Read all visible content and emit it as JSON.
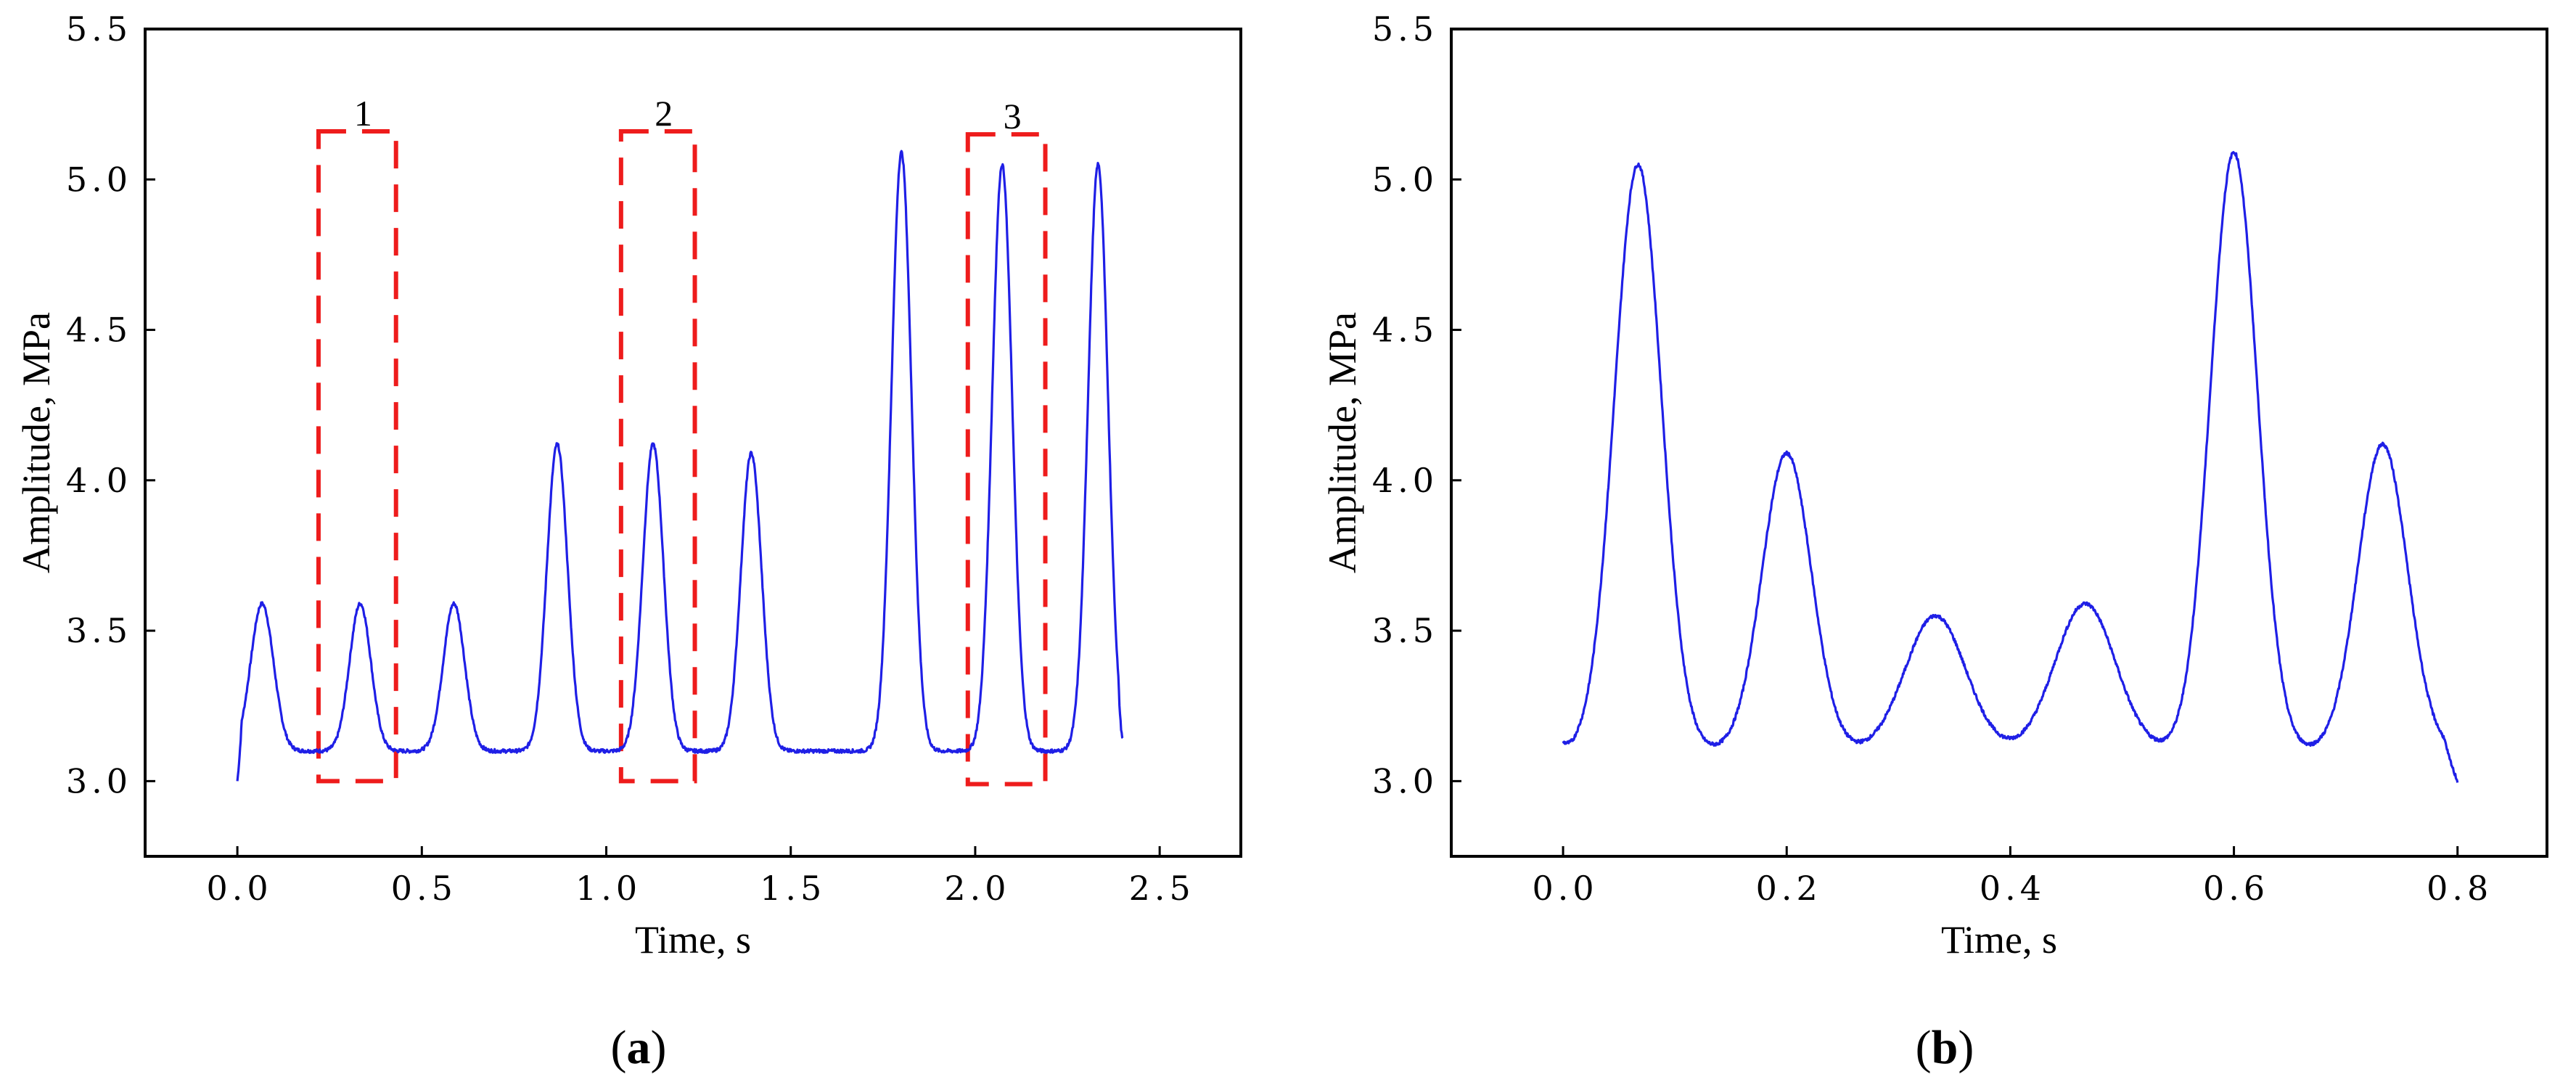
{
  "colors": {
    "line": "#1f1fe6",
    "box": "#ee1c1c",
    "axis": "#000000"
  },
  "chart_data": [
    {
      "type": "line",
      "panel_label": "a",
      "xlabel": "Time, s",
      "ylabel": "Amplitude, MPa",
      "xlim": [
        -0.25,
        2.72
      ],
      "ylim": [
        2.75,
        5.5
      ],
      "xticks": [
        "0.0",
        "0.5",
        "1.0",
        "1.5",
        "2.0",
        "2.5"
      ],
      "xtick_values": [
        0,
        0.5,
        1.0,
        1.5,
        2.0,
        2.5
      ],
      "yticks": [
        "3.0",
        "3.5",
        "4.0",
        "4.5",
        "5.0",
        "5.5"
      ],
      "ytick_values": [
        3.0,
        3.5,
        4.0,
        4.5,
        5.0,
        5.5
      ],
      "grid": false,
      "baseline": 3.1,
      "series": [
        {
          "x_start": 0.0,
          "x_end": 2.4,
          "start_y": 3.0,
          "end_y": 3.14,
          "peaks": [
            {
              "t": 0.067,
              "amp": 3.59,
              "width": 0.031
            },
            {
              "t": 0.333,
              "amp": 3.59,
              "width": 0.029
            },
            {
              "t": 0.587,
              "amp": 3.59,
              "width": 0.029
            },
            {
              "t": 0.867,
              "amp": 4.12,
              "width": 0.028
            },
            {
              "t": 1.127,
              "amp": 4.12,
              "width": 0.028
            },
            {
              "t": 1.393,
              "amp": 4.09,
              "width": 0.028
            },
            {
              "t": 1.8,
              "amp": 5.09,
              "width": 0.027
            },
            {
              "t": 2.073,
              "amp": 5.05,
              "width": 0.027
            },
            {
              "t": 2.333,
              "amp": 5.05,
              "width": 0.027
            }
          ]
        }
      ],
      "annotations": [
        {
          "label": "1",
          "x0": 0.22,
          "x1": 0.43,
          "y0": 3.0,
          "y1": 5.16
        },
        {
          "label": "2",
          "x0": 1.04,
          "x1": 1.24,
          "y0": 3.0,
          "y1": 5.16
        },
        {
          "label": "3",
          "x0": 1.98,
          "x1": 2.19,
          "y0": 2.99,
          "y1": 5.15
        }
      ]
    },
    {
      "type": "line",
      "panel_label": "b",
      "xlabel": "Time, s",
      "ylabel": "Amplitude, MPa",
      "xlim": [
        -0.1,
        0.88
      ],
      "ylim": [
        2.75,
        5.5
      ],
      "xticks": [
        "0.0",
        "0.2",
        "0.4",
        "0.6",
        "0.8"
      ],
      "xtick_values": [
        0,
        0.2,
        0.4,
        0.6,
        0.8
      ],
      "yticks": [
        "3.0",
        "3.5",
        "4.0",
        "4.5",
        "5.0",
        "5.5"
      ],
      "ytick_values": [
        3.0,
        3.5,
        4.0,
        4.5,
        5.0,
        5.5
      ],
      "grid": false,
      "baseline": 3.1,
      "series": [
        {
          "x_start": 0.0,
          "x_end": 0.8,
          "start_y": 3.13,
          "end_y": 3.0,
          "peaks": [
            {
              "t": 0.067,
              "amp": 5.05,
              "width": 0.021
            },
            {
              "t": 0.2,
              "amp": 4.09,
              "width": 0.022
            },
            {
              "t": 0.333,
              "amp": 3.55,
              "width": 0.027
            },
            {
              "t": 0.467,
              "amp": 3.59,
              "width": 0.027
            },
            {
              "t": 0.6,
              "amp": 5.09,
              "width": 0.021
            },
            {
              "t": 0.733,
              "amp": 4.12,
              "width": 0.022
            }
          ]
        }
      ]
    }
  ]
}
